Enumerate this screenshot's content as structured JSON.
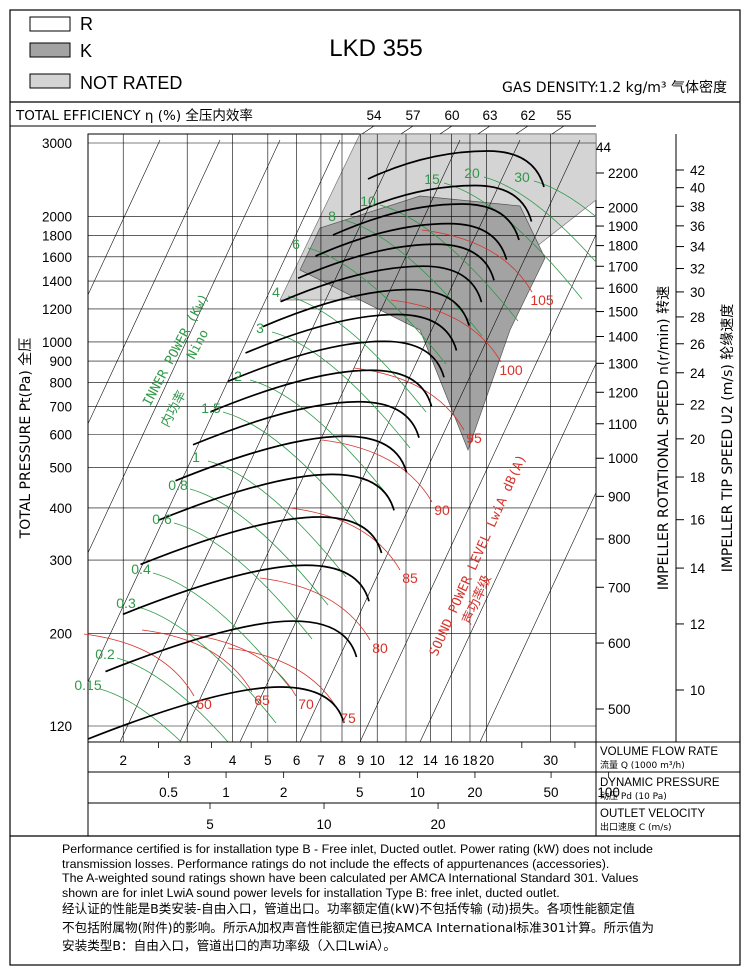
{
  "legend": [
    {
      "label": "R",
      "fill": "#ffffff"
    },
    {
      "label": "K",
      "fill": "#a3a3a3"
    },
    {
      "label": "NOT RATED",
      "fill": "#d4d4d4"
    }
  ],
  "title": "LKD 355",
  "gas_density": "GAS DENSITY:1.2 kg/m³ 气体密度",
  "efficiency_header": "TOTAL EFFICIENCY η (%) 全压内效率",
  "efficiency_values": [
    "54",
    "57",
    "60",
    "63",
    "62",
    "55"
  ],
  "axis_labels": {
    "y": "TOTAL PRESSURE Pt(Pa) 全压",
    "speed": "IMPELLER ROTATIONAL SPEED n(r/min) 转速",
    "tip_speed": "IMPELLER TIP SPEED U2 (m/s) 轮缘速度",
    "volume": "VOLUME FLOW RATE",
    "volume_sub": "流量 Q (1000 m³/h)",
    "dynamic": "DYNAMIC PRESSURE",
    "dynamic_sub": "动压 Pd (10 Pa)",
    "velocity": "OUTLET VELOCITY",
    "velocity_sub": "出口速度 C (m/s)",
    "power": "INNER POWER (Kw)",
    "power_zh": "内功率",
    "power_sub": "Nino",
    "sound": "SOUND POWER LEVEL LwiA dB(A)",
    "sound_zh": "声功率级"
  },
  "notes": [
    "Performance certified is for installation type B - Free inlet, Ducted outlet. Power rating (kW) does not include",
    "transmission losses. Performance ratings do not include the effects of appurtenances (accessories).",
    "The A-weighted sound ratings shown have been calculated per AMCA International Standard 301. Values",
    "shown are for inlet LwiA sound power levels for installation Type B: free inlet, ducted outlet.",
    "经认证的性能是B类安装-自由入口，管道出口。功率额定值(kW)不包括传输 (动)损失。各项性能额定值",
    "不包括附属物(附件)的影响。所示A加权声音性能额定值已按AMCA International标准301计算。所示值为",
    "安装类型B：自由入口，管道出口的声功率级（入口LwiA）。"
  ],
  "chart_data": {
    "type": "line",
    "x_scale": "log",
    "y_scale": "log",
    "xlabel": "VOLUME FLOW RATE",
    "ylabel": "TOTAL PRESSURE Pt(Pa) 全压",
    "y_ticks": [
      120,
      200,
      300,
      400,
      500,
      600,
      700,
      800,
      900,
      1000,
      1200,
      1400,
      1600,
      1800,
      2000,
      3000
    ],
    "x_ticks": [
      2,
      3,
      4,
      5,
      6,
      7,
      8,
      9,
      10,
      12,
      14,
      16,
      18,
      20,
      30
    ],
    "dynamic_pressure_ticks": [
      "0.5",
      "1",
      "2",
      "5",
      "10",
      "20",
      "50",
      "100"
    ],
    "outlet_velocity_ticks": [
      "5",
      "10",
      "20"
    ],
    "speed_ticks": [
      "500",
      "600",
      "700",
      "800",
      "900",
      "1000",
      "1100",
      "1200",
      "1300",
      "1400",
      "1500",
      "1600",
      "1700",
      "1800",
      "1900",
      "2000",
      "2200"
    ],
    "speed_top_label": "44",
    "tip_speed_ticks": [
      "10",
      "12",
      "14",
      "16",
      "18",
      "20",
      "22",
      "24",
      "26",
      "28",
      "30",
      "32",
      "34",
      "36",
      "38",
      "40",
      "42"
    ],
    "speeds_rpm": [
      500,
      600,
      700,
      800,
      900,
      1000,
      1100,
      1200,
      1300,
      1400,
      1500,
      1600,
      1700,
      1800,
      1900,
      2000,
      2200
    ],
    "power_labels": [
      "0.15",
      "0.2",
      "0.3",
      "0.4",
      "0.6",
      "0.8",
      "1",
      "1.5",
      "2",
      "3",
      "4",
      "6",
      "8",
      "10",
      "15",
      "20",
      "30"
    ],
    "sound_labels": [
      "60",
      "65",
      "70",
      "75",
      "80",
      "85",
      "90",
      "95",
      "100",
      "105"
    ],
    "colors": {
      "power": "#2f9a48",
      "sound": "#d8322b",
      "curve": "#000000",
      "k_zone": "#a3a3a3",
      "not_rated": "#d4d4d4"
    }
  }
}
